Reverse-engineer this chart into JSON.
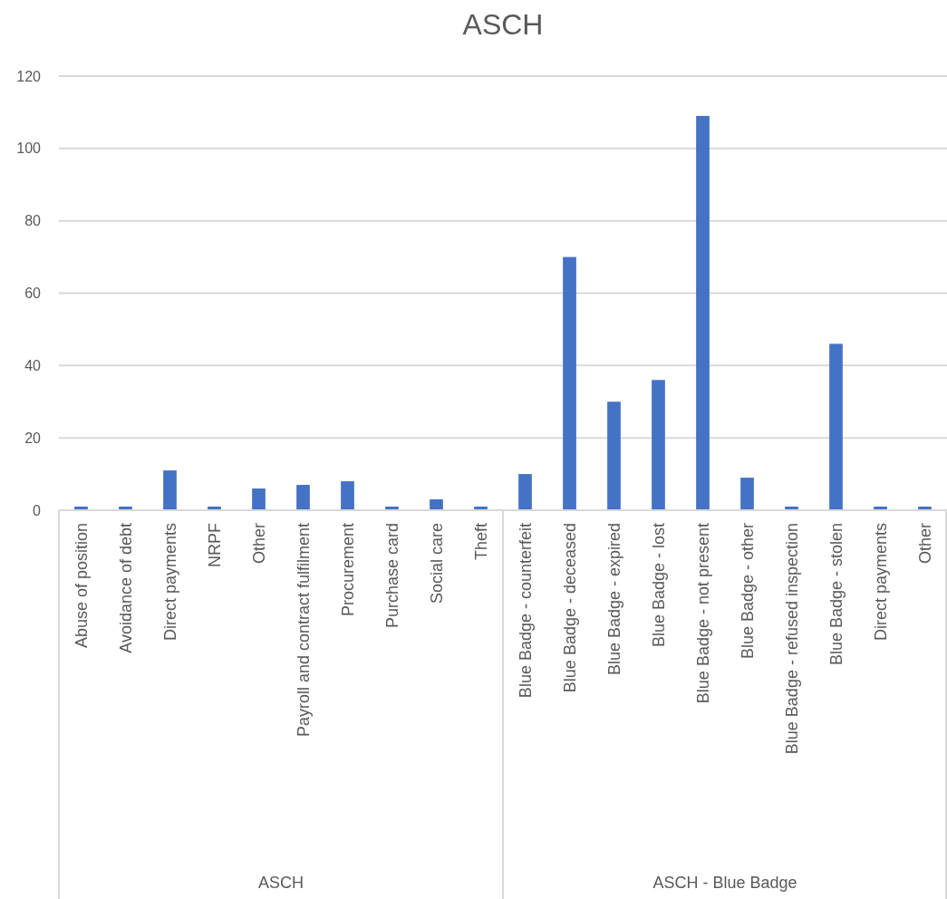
{
  "chart_data": {
    "type": "bar",
    "title": "ASCH",
    "categories": [
      "Abuse of position",
      "Avoidance of debt",
      "Direct payments",
      "NRPF",
      "Other",
      "Payroll and contract fulfilment",
      "Procurement",
      "Purchase card",
      "Social care",
      "Theft",
      "Blue Badge - counterfeit",
      "Blue Badge - deceased",
      "Blue Badge - expired",
      "Blue Badge - lost",
      "Blue Badge - not present",
      "Blue Badge - other",
      "Blue Badge - refused inspection",
      "Blue Badge - stolen",
      "Direct payments",
      "Other"
    ],
    "values": [
      1,
      1,
      11,
      1,
      6,
      7,
      8,
      1,
      3,
      1,
      10,
      70,
      30,
      36,
      109,
      9,
      1,
      46,
      1,
      1
    ],
    "color": "#4472c4",
    "ylim": [
      0,
      120
    ],
    "yticks": [
      0,
      20,
      40,
      60,
      80,
      100,
      120
    ],
    "grid": "y",
    "annotations": [
      "ASCH",
      "ASCH - Blue Badge"
    ]
  }
}
